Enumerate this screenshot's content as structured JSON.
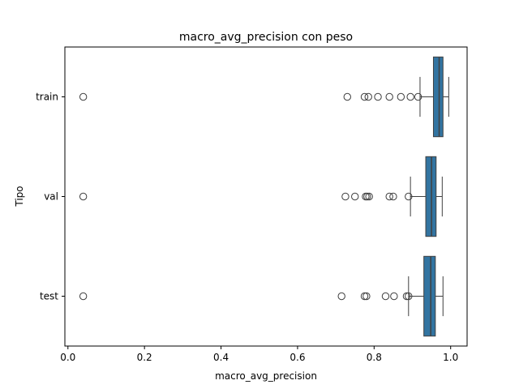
{
  "chart_data": {
    "type": "box",
    "orientation": "horizontal",
    "title": "macro_avg_precision con peso",
    "xlabel": "macro_avg_precision",
    "ylabel": "Tipo",
    "xlim": [
      -0.008,
      1.043
    ],
    "xticks": [
      0.0,
      0.2,
      0.4,
      0.6,
      0.8,
      1.0
    ],
    "xtick_labels": [
      "0.0",
      "0.2",
      "0.4",
      "0.6",
      "0.8",
      "1.0"
    ],
    "grid": false,
    "legend": "none",
    "box_color": "#3274a1",
    "categories": [
      "train",
      "val",
      "test"
    ],
    "boxes": [
      {
        "category": "train",
        "whislo": 0.92,
        "q1": 0.955,
        "median": 0.97,
        "q3": 0.98,
        "whishi": 0.995,
        "fliers": [
          0.04,
          0.73,
          0.775,
          0.785,
          0.81,
          0.84,
          0.87,
          0.895,
          0.915
        ]
      },
      {
        "category": "val",
        "whislo": 0.895,
        "q1": 0.935,
        "median": 0.95,
        "q3": 0.962,
        "whishi": 0.978,
        "fliers": [
          0.04,
          0.725,
          0.75,
          0.778,
          0.782,
          0.787,
          0.84,
          0.85,
          0.89
        ]
      },
      {
        "category": "test",
        "whislo": 0.89,
        "q1": 0.93,
        "median": 0.948,
        "q3": 0.96,
        "whishi": 0.98,
        "fliers": [
          0.04,
          0.715,
          0.775,
          0.78,
          0.83,
          0.852,
          0.885,
          0.89
        ]
      }
    ]
  }
}
